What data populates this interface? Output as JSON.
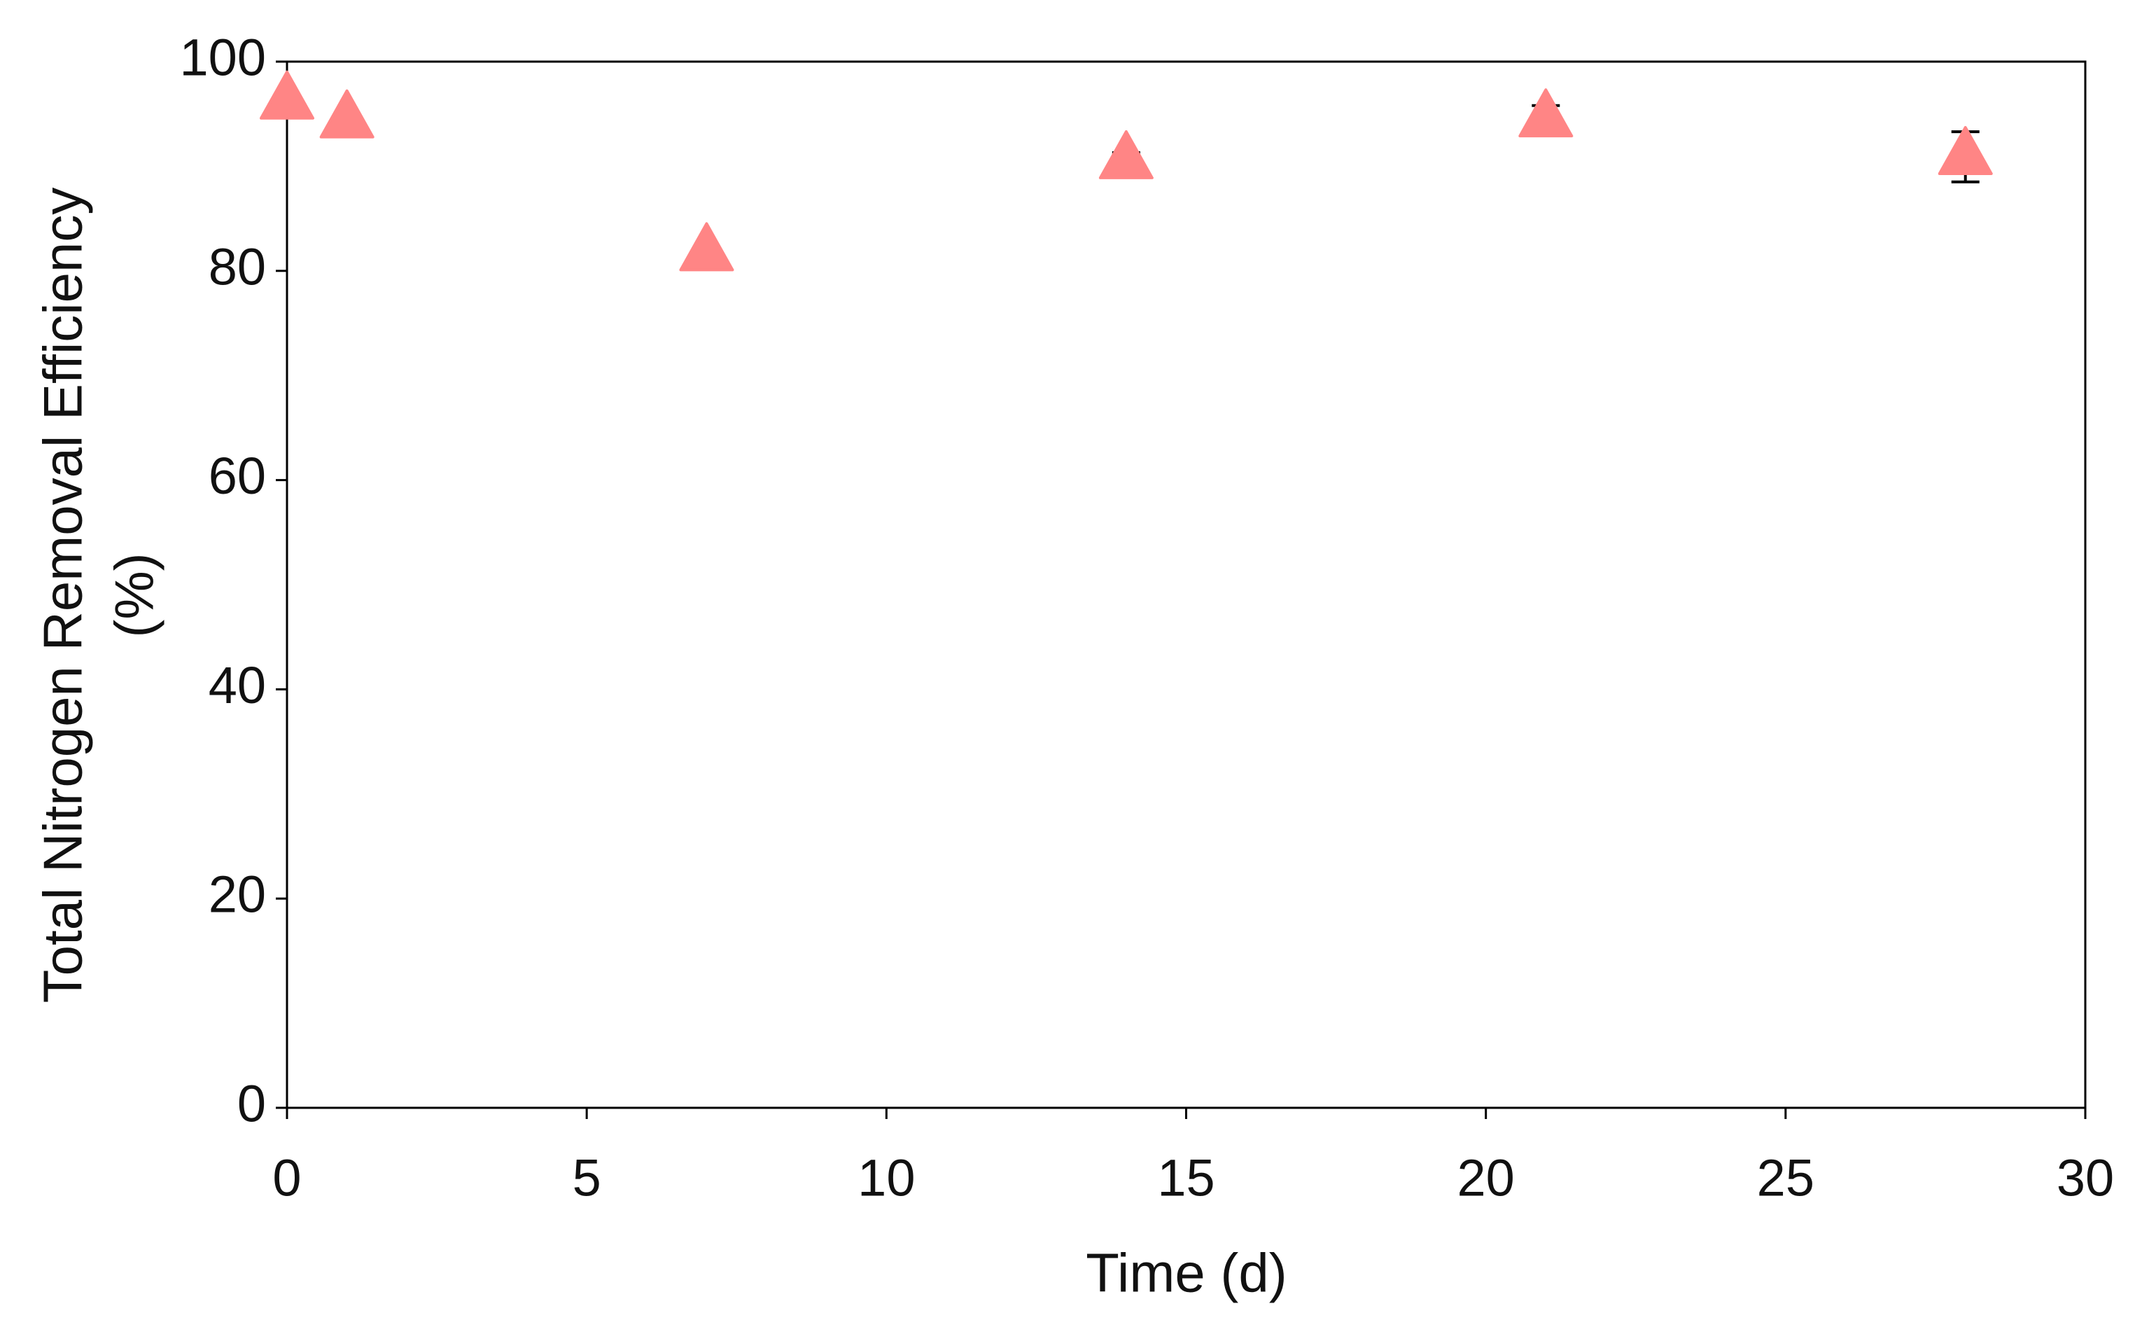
{
  "chart_data": {
    "type": "scatter",
    "xlabel": "Time (d)",
    "ylabel": [
      "Total Nitrogen Removal Efficiency",
      "(%)"
    ],
    "series": [
      {
        "color": "#ff8585",
        "marker": "triangle",
        "x": [
          0,
          1,
          7,
          14,
          21,
          28
        ],
        "values": [
          96.2,
          94.4,
          81.7,
          90.5,
          94.5,
          90.9
        ],
        "errors": [
          0.5,
          0.5,
          0.5,
          0.8,
          1.3,
          2.4
        ]
      }
    ],
    "xlim": [
      0,
      30
    ],
    "xticks": [
      0,
      5,
      10,
      15,
      20,
      25,
      30
    ],
    "ylim": [
      0,
      100
    ],
    "yticks": [
      0,
      20,
      40,
      60,
      80,
      100
    ],
    "grid": false
  }
}
